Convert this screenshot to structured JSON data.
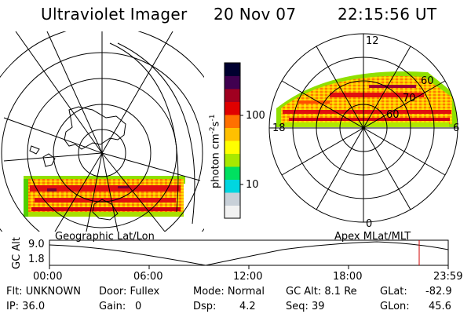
{
  "header": {
    "title": "Ultraviolet Imager",
    "date": "20 Nov 07",
    "time": "22:15:56 UT"
  },
  "colorbar": {
    "unit_prefix": "photon cm",
    "unit_exp1": "-2",
    "unit_mid": "s",
    "unit_exp2": "-1",
    "tick_100": "100",
    "tick_10": "10",
    "colors": [
      "#f2f2f2",
      "#c8d0d8",
      "#00d6e0",
      "#00e060",
      "#a8e800",
      "#ffff00",
      "#ffc000",
      "#ff7000",
      "#e00000",
      "#a00020",
      "#400050",
      "#000030"
    ]
  },
  "left_map": {
    "label": "Geographic Lat/Lon"
  },
  "right_map": {
    "label": "Apex MLat/MLT",
    "mlt_top": "12",
    "mlt_bottom": "0",
    "mlt_left": "18",
    "mlt_right": "6",
    "lat_60a": "60",
    "lat_70": "70",
    "lat_60b": "60"
  },
  "altitude_panel": {
    "ylabel": "GC Alt",
    "ymax": "9.0",
    "ymin": "1.8",
    "time_ticks": [
      "00:00",
      "06:00",
      "12:00",
      "18:00",
      "23:59"
    ],
    "current_marker_color": "#d00000"
  },
  "footer": {
    "flt": "Flt: UNKNOWN",
    "ip": "IP: 36.0",
    "door": "Door: Fullex",
    "gain_label": "Gain:",
    "gain_value": "0",
    "mode": "Mode: Normal",
    "dsp_label": "Dsp:",
    "dsp_value": "4.2",
    "gcalt": "GC Alt: 8.1 Re",
    "seq": "Seq: 39",
    "glat_label": "GLat:",
    "glat_value": "-82.9",
    "glon_label": "GLon:",
    "glon_value": "45.6"
  }
}
